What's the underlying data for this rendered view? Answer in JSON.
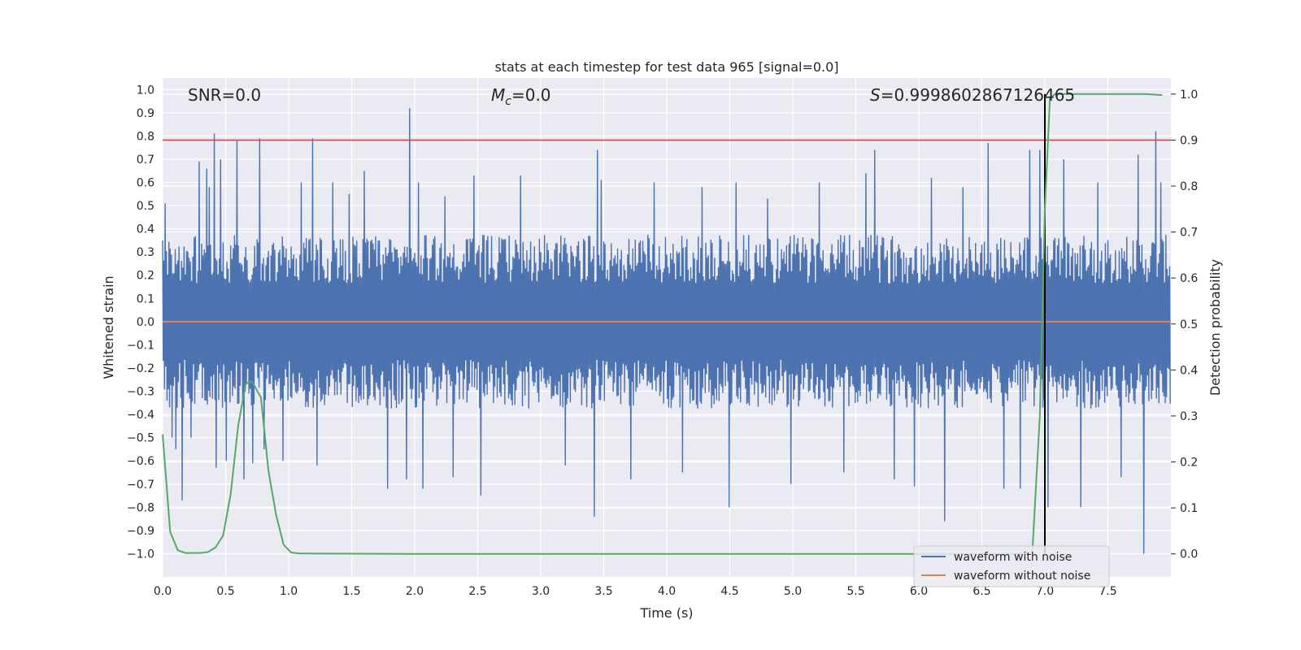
{
  "chart_data": {
    "type": "line",
    "title": "stats at each timestep for test data 965 [signal=0.0]",
    "xlabel": "Time (s)",
    "ylabel": "Whitened strain",
    "y2label": "Detection probability",
    "xlim": [
      0,
      8
    ],
    "ylim": [
      -1.1,
      1.05
    ],
    "y2lim": [
      -0.05,
      1.035
    ],
    "xticks": [
      "0.0",
      "0.5",
      "1.0",
      "1.5",
      "2.0",
      "2.5",
      "3.0",
      "3.5",
      "4.0",
      "4.5",
      "5.0",
      "5.5",
      "6.0",
      "6.5",
      "7.0",
      "7.5"
    ],
    "yticks": [
      "−1.0",
      "−0.9",
      "−0.8",
      "−0.7",
      "−0.6",
      "−0.5",
      "−0.4",
      "−0.3",
      "−0.2",
      "−0.1",
      "0.0",
      "0.1",
      "0.2",
      "0.3",
      "0.4",
      "0.5",
      "0.6",
      "0.7",
      "0.8",
      "0.9",
      "1.0"
    ],
    "y2ticks": [
      "0.0",
      "0.1",
      "0.2",
      "0.3",
      "0.4",
      "0.5",
      "0.6",
      "0.7",
      "0.8",
      "0.9",
      "1.0"
    ],
    "grid": true,
    "annotations": {
      "snr": "SNR=0.0",
      "mc_symbol": "M",
      "mc_sub": "c",
      "mc_value": "=0.0",
      "s_symbol": "S",
      "s_value": "=0.9998602867126465"
    },
    "threshold_line": {
      "axis": "y2",
      "value": 0.9,
      "color": "#c44e52"
    },
    "vertical_line": {
      "x": 7.0,
      "color": "#000000"
    },
    "noise_series": {
      "name": "waveform with noise",
      "color": "#4c72b0",
      "base_amplitude": 0.3,
      "spikes": [
        [
          0.02,
          0.51
        ],
        [
          0.07,
          -0.5
        ],
        [
          0.1,
          -0.55
        ],
        [
          0.15,
          -0.77
        ],
        [
          0.22,
          -0.5
        ],
        [
          0.29,
          0.69
        ],
        [
          0.35,
          0.66
        ],
        [
          0.37,
          0.58
        ],
        [
          0.41,
          0.81
        ],
        [
          0.42,
          -0.63
        ],
        [
          0.46,
          0.7
        ],
        [
          0.5,
          -0.6
        ],
        [
          0.59,
          0.78
        ],
        [
          0.64,
          -0.68
        ],
        [
          0.71,
          -0.61
        ],
        [
          0.77,
          0.79
        ],
        [
          0.8,
          -0.55
        ],
        [
          0.95,
          -0.6
        ],
        [
          1.1,
          0.6
        ],
        [
          1.19,
          0.79
        ],
        [
          1.22,
          -0.62
        ],
        [
          1.35,
          0.6
        ],
        [
          1.48,
          0.55
        ],
        [
          1.6,
          0.65
        ],
        [
          1.78,
          -0.72
        ],
        [
          1.93,
          -0.68
        ],
        [
          1.96,
          0.92
        ],
        [
          2.03,
          0.6
        ],
        [
          2.06,
          -0.72
        ],
        [
          2.24,
          0.54
        ],
        [
          2.3,
          -0.67
        ],
        [
          2.47,
          0.63
        ],
        [
          2.52,
          -0.75
        ],
        [
          2.84,
          0.63
        ],
        [
          3.19,
          -0.62
        ],
        [
          3.42,
          -0.84
        ],
        [
          3.45,
          0.74
        ],
        [
          3.48,
          0.61
        ],
        [
          3.71,
          -0.68
        ],
        [
          3.9,
          0.6
        ],
        [
          4.12,
          -0.65
        ],
        [
          4.28,
          0.58
        ],
        [
          4.49,
          -0.8
        ],
        [
          4.55,
          0.6
        ],
        [
          4.8,
          0.53
        ],
        [
          4.98,
          -0.7
        ],
        [
          5.21,
          0.6
        ],
        [
          5.4,
          -0.65
        ],
        [
          5.58,
          0.64
        ],
        [
          5.65,
          0.74
        ],
        [
          5.8,
          -0.68
        ],
        [
          5.96,
          -0.71
        ],
        [
          6.1,
          0.62
        ],
        [
          6.2,
          -0.86
        ],
        [
          6.35,
          0.58
        ],
        [
          6.55,
          0.77
        ],
        [
          6.67,
          -0.72
        ],
        [
          6.8,
          -0.72
        ],
        [
          6.88,
          0.74
        ],
        [
          6.96,
          0.74
        ],
        [
          7.02,
          -0.8
        ],
        [
          7.15,
          0.7
        ],
        [
          7.28,
          -0.8
        ],
        [
          7.42,
          0.6
        ],
        [
          7.6,
          -0.67
        ],
        [
          7.74,
          0.72
        ],
        [
          7.78,
          -1.0
        ],
        [
          7.88,
          0.82
        ],
        [
          7.92,
          0.6
        ]
      ]
    },
    "clean_series": {
      "name": "waveform without noise",
      "color": "#dd8452",
      "x": [
        0,
        8
      ],
      "y": [
        0,
        0
      ]
    },
    "probability_series": {
      "name": "Detection probability",
      "color": "#55a868",
      "x": [
        0.0,
        0.06,
        0.12,
        0.18,
        0.24,
        0.3,
        0.36,
        0.42,
        0.48,
        0.54,
        0.6,
        0.66,
        0.7,
        0.72,
        0.78,
        0.84,
        0.9,
        0.96,
        1.02,
        1.08,
        2.0,
        4.0,
        6.0,
        6.9,
        6.96,
        7.0,
        7.04,
        7.08,
        7.2,
        7.5,
        7.8,
        7.93
      ],
      "y": [
        0.26,
        0.048,
        0.008,
        0.002,
        0.002,
        0.002,
        0.004,
        0.014,
        0.04,
        0.13,
        0.28,
        0.37,
        0.375,
        0.37,
        0.34,
        0.18,
        0.085,
        0.02,
        0.003,
        0.001,
        0.0,
        0.0,
        0.0,
        0.0,
        0.3,
        0.75,
        0.99,
        1.0,
        1.0,
        1.0,
        1.0,
        0.998
      ]
    },
    "legend": {
      "placement": "lower-right",
      "items": [
        "waveform with noise",
        "waveform without noise"
      ]
    }
  }
}
